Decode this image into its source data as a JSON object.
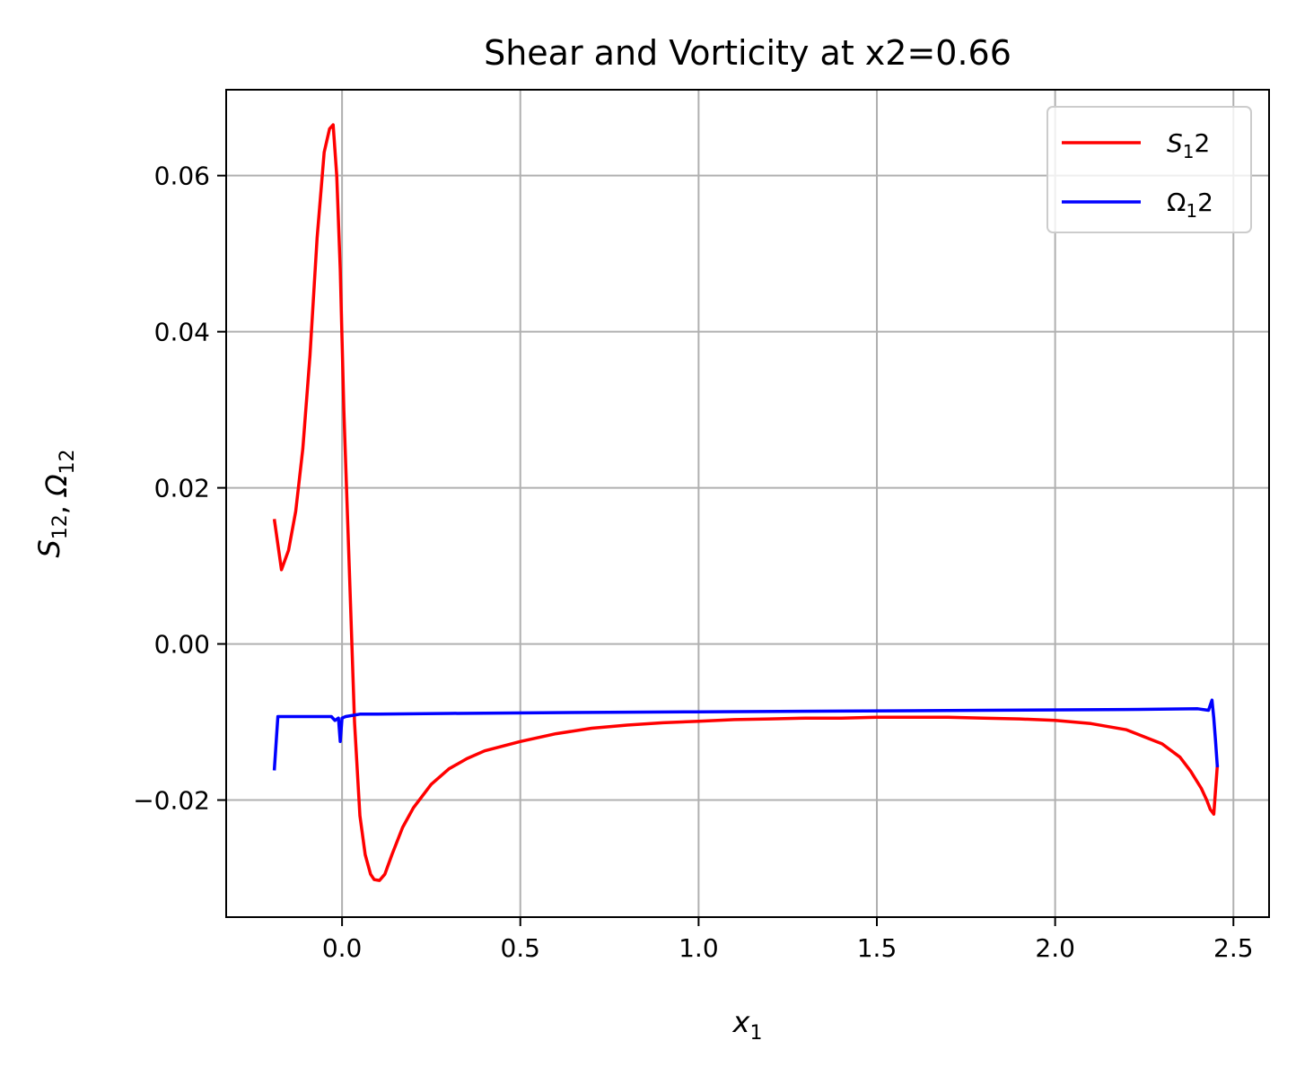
{
  "chart_data": {
    "type": "line",
    "title": "Shear and Vorticity at x2=0.66",
    "xlabel": "x",
    "xlabel_sub": "1",
    "ylabel_parts": [
      {
        "base": "S",
        "sub": "12"
      },
      {
        "sep": ", "
      },
      {
        "base": "Ω",
        "sub": "12"
      }
    ],
    "xlim": [
      -0.325,
      2.6
    ],
    "ylim": [
      -0.035,
      0.071
    ],
    "xticks": [
      0.0,
      0.5,
      1.0,
      1.5,
      2.0,
      2.5
    ],
    "xtick_labels": [
      "0.0",
      "0.5",
      "1.0",
      "1.5",
      "2.0",
      "2.5"
    ],
    "yticks": [
      -0.02,
      0.0,
      0.02,
      0.04,
      0.06
    ],
    "ytick_labels": [
      "−0.02",
      "0.00",
      "0.02",
      "0.04",
      "0.06"
    ],
    "grid": true,
    "legend_position": "top-right",
    "series": [
      {
        "name_base": "S",
        "name_sub": "1",
        "name_tail": "2",
        "color": "#ff0000",
        "x": [
          -0.19,
          -0.17,
          -0.15,
          -0.13,
          -0.11,
          -0.09,
          -0.07,
          -0.05,
          -0.035,
          -0.025,
          -0.015,
          -0.005,
          0.005,
          0.02,
          0.035,
          0.05,
          0.065,
          0.08,
          0.09,
          0.105,
          0.12,
          0.14,
          0.17,
          0.2,
          0.25,
          0.3,
          0.35,
          0.4,
          0.5,
          0.6,
          0.7,
          0.8,
          0.9,
          1.0,
          1.1,
          1.2,
          1.3,
          1.4,
          1.5,
          1.6,
          1.7,
          1.8,
          1.9,
          2.0,
          2.1,
          2.2,
          2.3,
          2.35,
          2.38,
          2.41,
          2.425,
          2.435,
          2.445,
          2.455
        ],
        "y": [
          0.016,
          0.0095,
          0.012,
          0.017,
          0.025,
          0.037,
          0.052,
          0.063,
          0.066,
          0.0665,
          0.06,
          0.048,
          0.03,
          0.01,
          -0.01,
          -0.022,
          -0.027,
          -0.0295,
          -0.0302,
          -0.0303,
          -0.0295,
          -0.027,
          -0.0235,
          -0.021,
          -0.018,
          -0.016,
          -0.0147,
          -0.0137,
          -0.0125,
          -0.0115,
          -0.0108,
          -0.0104,
          -0.0101,
          -0.0099,
          -0.0097,
          -0.0096,
          -0.0095,
          -0.0095,
          -0.0094,
          -0.0094,
          -0.0094,
          -0.0095,
          -0.0096,
          -0.0098,
          -0.0102,
          -0.011,
          -0.0128,
          -0.0145,
          -0.0163,
          -0.0185,
          -0.02,
          -0.0212,
          -0.0218,
          -0.0155
        ]
      },
      {
        "name_base": "Ω",
        "name_sub": "1",
        "name_tail": "2",
        "color": "#0000ff",
        "x": [
          -0.19,
          -0.18,
          -0.17,
          -0.1,
          -0.03,
          -0.02,
          -0.01,
          -0.005,
          0.0,
          0.01,
          0.05,
          0.1,
          0.3,
          0.6,
          1.0,
          1.4,
          1.8,
          2.2,
          2.4,
          2.43,
          2.44,
          2.445,
          2.45,
          2.455
        ],
        "y": [
          -0.0162,
          -0.0093,
          -0.0093,
          -0.0093,
          -0.0093,
          -0.0098,
          -0.0095,
          -0.0125,
          -0.0095,
          -0.0093,
          -0.009,
          -0.009,
          -0.0089,
          -0.0088,
          -0.0087,
          -0.0086,
          -0.0085,
          -0.0084,
          -0.0083,
          -0.0085,
          -0.0072,
          -0.0095,
          -0.0125,
          -0.0158
        ]
      }
    ]
  }
}
